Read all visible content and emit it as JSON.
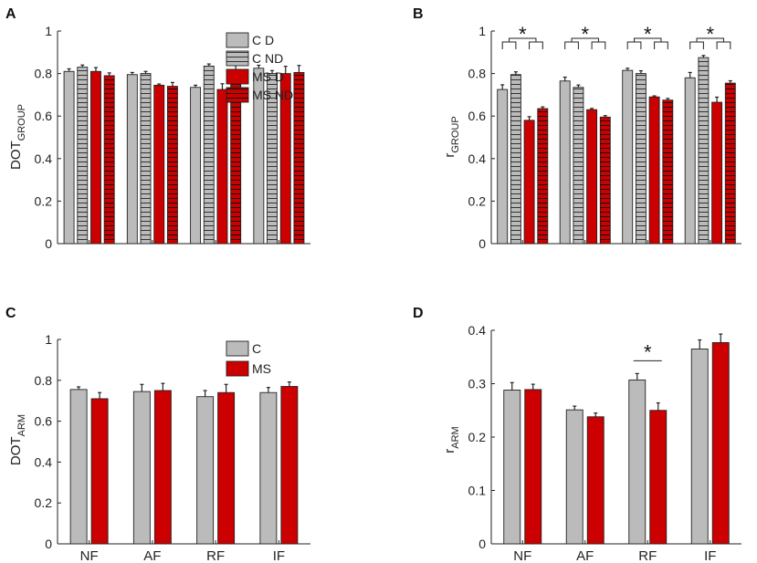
{
  "colors": {
    "control": "#bbbbbb",
    "ms": "#cc0000",
    "hatch": "#333333",
    "axis": "#222222"
  },
  "chart_data": [
    {
      "panel": "A",
      "type": "bar",
      "title": "",
      "ylabel_main": "DOT",
      "ylabel_sub": "GROUP",
      "ylim": [
        0,
        1
      ],
      "yticks": [
        "0",
        "0.2",
        "0.4",
        "0.6",
        "0.8",
        "1"
      ],
      "ytick_values": [
        0,
        0.2,
        0.4,
        0.6,
        0.8,
        1
      ],
      "categories": [
        "NF",
        "AF",
        "RF",
        "IF"
      ],
      "show_xticklabels": false,
      "legend_position": "top-right",
      "series": [
        {
          "name": "C D",
          "style": "control-solid",
          "values": [
            0.81,
            0.795,
            0.735,
            0.825
          ],
          "errors": [
            0.012,
            0.01,
            0.01,
            0.014
          ]
        },
        {
          "name": "C ND",
          "style": "control-hatch",
          "values": [
            0.83,
            0.8,
            0.835,
            0.8
          ],
          "errors": [
            0.01,
            0.01,
            0.01,
            0.014
          ]
        },
        {
          "name": "MS D",
          "style": "ms-solid",
          "values": [
            0.81,
            0.745,
            0.725,
            0.8
          ],
          "errors": [
            0.018,
            0.006,
            0.027,
            0.034
          ]
        },
        {
          "name": "MS ND",
          "style": "ms-hatch",
          "values": [
            0.79,
            0.74,
            0.805,
            0.805
          ],
          "errors": [
            0.013,
            0.018,
            0.035,
            0.033
          ]
        }
      ],
      "significance": []
    },
    {
      "panel": "B",
      "type": "bar",
      "title": "",
      "ylabel_main": "r",
      "ylabel_sub": "GROUP",
      "ylim": [
        0,
        1
      ],
      "yticks": [
        "0",
        "0.2",
        "0.4",
        "0.6",
        "0.8",
        "1"
      ],
      "ytick_values": [
        0,
        0.2,
        0.4,
        0.6,
        0.8,
        1
      ],
      "categories": [
        "NF",
        "AF",
        "RF",
        "IF"
      ],
      "show_xticklabels": false,
      "legend_position": "none",
      "series": [
        {
          "name": "C D",
          "style": "control-solid",
          "values": [
            0.725,
            0.765,
            0.815,
            0.78
          ],
          "errors": [
            0.022,
            0.018,
            0.01,
            0.025
          ]
        },
        {
          "name": "C ND",
          "style": "control-hatch",
          "values": [
            0.795,
            0.735,
            0.8,
            0.875
          ],
          "errors": [
            0.013,
            0.011,
            0.013,
            0.01
          ]
        },
        {
          "name": "MS D",
          "style": "ms-solid",
          "values": [
            0.58,
            0.63,
            0.69,
            0.665
          ],
          "errors": [
            0.017,
            0.006,
            0.005,
            0.024
          ]
        },
        {
          "name": "MS ND",
          "style": "ms-hatch",
          "values": [
            0.635,
            0.595,
            0.675,
            0.755
          ],
          "errors": [
            0.008,
            0.007,
            0.008,
            0.011
          ]
        }
      ],
      "significance": [
        {
          "category": "NF",
          "label": "*"
        },
        {
          "category": "AF",
          "label": "*"
        },
        {
          "category": "RF",
          "label": "*"
        },
        {
          "category": "IF",
          "label": "*"
        }
      ]
    },
    {
      "panel": "C",
      "type": "bar",
      "title": "",
      "ylabel_main": "DOT",
      "ylabel_sub": "ARM",
      "ylim": [
        0,
        1
      ],
      "yticks": [
        "0",
        "0.2",
        "0.4",
        "0.6",
        "0.8",
        "1"
      ],
      "ytick_values": [
        0,
        0.2,
        0.4,
        0.6,
        0.8,
        1
      ],
      "categories": [
        "NF",
        "AF",
        "RF",
        "IF"
      ],
      "show_xticklabels": true,
      "legend_position": "top-right",
      "series": [
        {
          "name": "C",
          "style": "control-solid",
          "values": [
            0.755,
            0.745,
            0.72,
            0.74
          ],
          "errors": [
            0.013,
            0.035,
            0.03,
            0.025
          ]
        },
        {
          "name": "MS",
          "style": "ms-solid",
          "values": [
            0.71,
            0.75,
            0.74,
            0.77
          ],
          "errors": [
            0.03,
            0.035,
            0.04,
            0.022
          ]
        }
      ],
      "significance": []
    },
    {
      "panel": "D",
      "type": "bar",
      "title": "",
      "ylabel_main": "r",
      "ylabel_sub": "ARM",
      "ylim": [
        0,
        0.4
      ],
      "yticks": [
        "0",
        "0.1",
        "0.2",
        "0.3",
        "0.4"
      ],
      "ytick_values": [
        0,
        0.1,
        0.2,
        0.3,
        0.4
      ],
      "categories": [
        "NF",
        "AF",
        "RF",
        "IF"
      ],
      "show_xticklabels": true,
      "legend_position": "none",
      "series": [
        {
          "name": "C",
          "style": "control-solid",
          "values": [
            0.288,
            0.251,
            0.307,
            0.365
          ],
          "errors": [
            0.014,
            0.007,
            0.012,
            0.017
          ]
        },
        {
          "name": "MS",
          "style": "ms-solid",
          "values": [
            0.289,
            0.238,
            0.25,
            0.377
          ],
          "errors": [
            0.01,
            0.007,
            0.014,
            0.016
          ]
        }
      ],
      "significance": [
        {
          "category": "RF",
          "label": "*"
        }
      ]
    }
  ]
}
